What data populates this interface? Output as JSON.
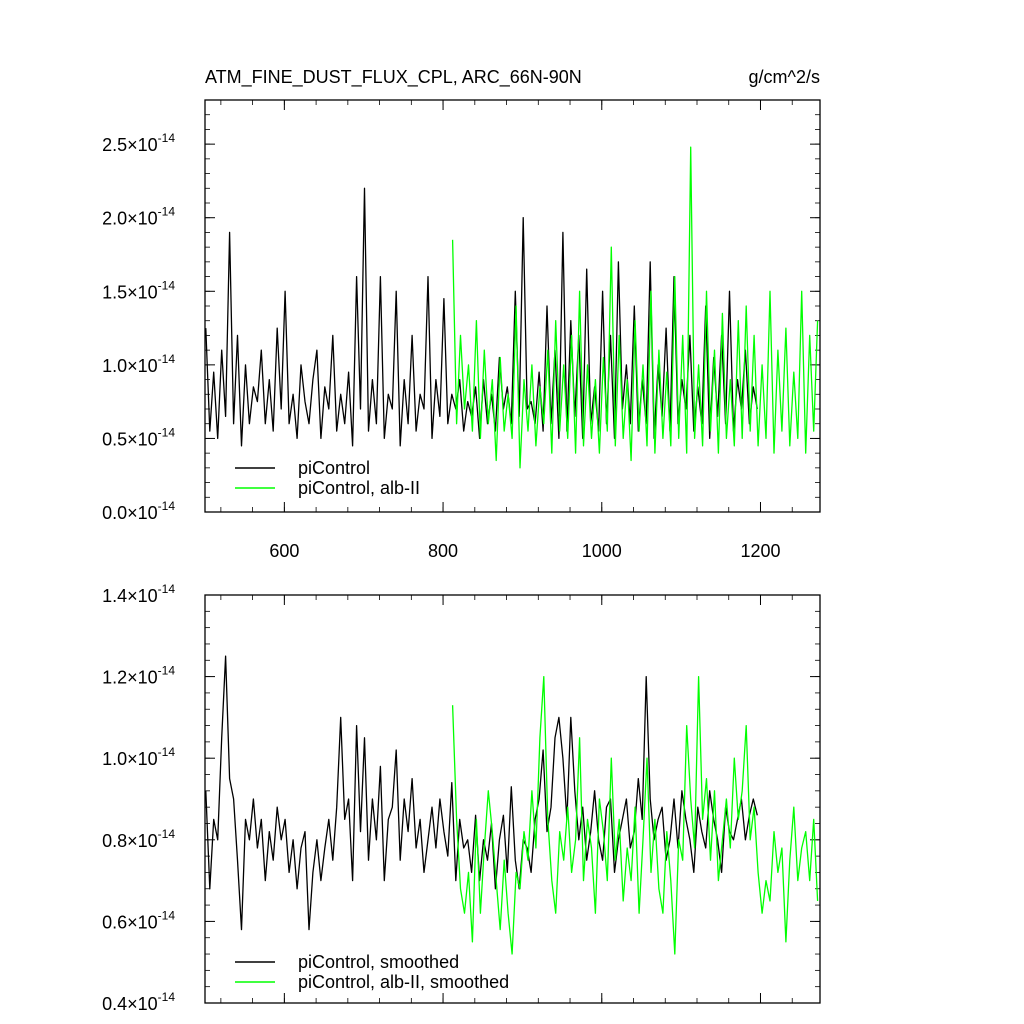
{
  "figure": {
    "title": "ATM_FINE_DUST_FLUX_CPL, ARC_66N-90N",
    "units": "g/cm^2/s"
  },
  "chart_data": [
    {
      "type": "line",
      "title": "ATM_FINE_DUST_FLUX_CPL, ARC_66N-90N",
      "xlim": [
        500,
        1275
      ],
      "ylim": [
        0.0,
        2.8
      ],
      "y_exponent": -14,
      "yticks": [
        0.0,
        0.5,
        1.0,
        1.5,
        2.0,
        2.5
      ],
      "ytick_labels": [
        "0.0",
        "0.5",
        "1.0",
        "1.5",
        "2.0",
        "2.5"
      ],
      "xticks": [
        600,
        800,
        1000,
        1200
      ],
      "xtick_labels": [
        "600",
        "800",
        "1000",
        "1200"
      ],
      "grid": false,
      "legend_position": "bottom-left",
      "series": [
        {
          "name": "piControl",
          "color": "#000000",
          "x": [
            501,
            506,
            511,
            516,
            521,
            526,
            531,
            536,
            541,
            546,
            551,
            556,
            561,
            566,
            571,
            576,
            581,
            586,
            591,
            596,
            601,
            606,
            611,
            616,
            621,
            626,
            631,
            636,
            641,
            646,
            651,
            656,
            661,
            666,
            671,
            676,
            681,
            686,
            691,
            696,
            701,
            706,
            711,
            716,
            721,
            726,
            731,
            736,
            741,
            746,
            751,
            756,
            761,
            766,
            771,
            776,
            781,
            786,
            791,
            796,
            801,
            806,
            811,
            816,
            821,
            826,
            831,
            836,
            841,
            846,
            851,
            856,
            861,
            866,
            871,
            876,
            881,
            886,
            891,
            896,
            901,
            906,
            911,
            916,
            921,
            926,
            931,
            936,
            941,
            946,
            951,
            956,
            961,
            966,
            971,
            976,
            981,
            986,
            991,
            996,
            1001,
            1006,
            1011,
            1016,
            1021,
            1026,
            1031,
            1036,
            1041,
            1046,
            1051,
            1056,
            1061,
            1066,
            1071,
            1076,
            1081,
            1086,
            1091,
            1096,
            1101,
            1106,
            1111,
            1116,
            1121,
            1126,
            1131,
            1136,
            1141,
            1146,
            1151,
            1156,
            1161,
            1166,
            1171,
            1176,
            1181,
            1186,
            1191,
            1196
          ],
          "y": [
            1.25,
            0.55,
            0.95,
            0.5,
            1.1,
            0.65,
            1.9,
            0.6,
            1.2,
            0.45,
            1.0,
            0.6,
            0.85,
            0.75,
            1.1,
            0.6,
            0.9,
            0.55,
            1.25,
            0.7,
            1.5,
            0.6,
            0.8,
            0.5,
            1.0,
            0.75,
            0.6,
            0.9,
            1.1,
            0.5,
            0.85,
            0.7,
            1.2,
            0.55,
            0.8,
            0.6,
            0.95,
            0.45,
            1.6,
            0.7,
            2.2,
            0.55,
            0.9,
            0.6,
            1.6,
            0.5,
            0.8,
            0.7,
            1.5,
            0.45,
            0.9,
            0.6,
            1.2,
            0.55,
            0.8,
            0.7,
            1.6,
            0.5,
            0.9,
            0.65,
            1.45,
            0.6,
            0.8,
            0.7,
            0.9,
            0.55,
            0.75,
            0.65,
            0.85,
            0.5,
            0.9,
            0.6,
            0.8,
            0.55,
            1.05,
            0.7,
            0.85,
            0.6,
            1.5,
            0.65,
            2.0,
            0.7,
            0.75,
            0.6,
            0.95,
            0.55,
            1.4,
            0.6,
            1.1,
            0.5,
            1.9,
            0.55,
            1.3,
            0.65,
            1.2,
            0.5,
            1.65,
            0.6,
            0.85,
            0.55,
            1.5,
            0.6,
            1.2,
            0.5,
            1.7,
            0.7,
            1.0,
            0.6,
            1.4,
            0.55,
            0.9,
            0.6,
            1.7,
            0.5,
            1.0,
            0.65,
            1.25,
            0.55,
            1.6,
            0.6,
            0.9,
            0.7,
            1.2,
            0.55,
            0.85,
            0.6,
            1.4,
            0.5,
            1.05,
            0.65,
            1.2,
            0.6,
            1.5,
            0.55,
            0.9,
            0.7,
            1.1,
            0.6,
            0.85,
            0.7
          ]
        },
        {
          "name": "piControl, alb-II",
          "color": "#00ff00",
          "x": [
            812,
            817,
            822,
            827,
            832,
            837,
            842,
            847,
            852,
            857,
            862,
            867,
            872,
            877,
            882,
            887,
            892,
            897,
            902,
            907,
            912,
            917,
            922,
            927,
            932,
            937,
            942,
            947,
            952,
            957,
            962,
            967,
            972,
            977,
            982,
            987,
            992,
            997,
            1002,
            1007,
            1012,
            1017,
            1022,
            1027,
            1032,
            1037,
            1042,
            1047,
            1052,
            1057,
            1062,
            1067,
            1072,
            1077,
            1082,
            1087,
            1092,
            1097,
            1102,
            1107,
            1112,
            1117,
            1122,
            1127,
            1132,
            1137,
            1142,
            1147,
            1152,
            1157,
            1162,
            1167,
            1172,
            1177,
            1182,
            1187,
            1192,
            1197,
            1202,
            1207,
            1212,
            1217,
            1222,
            1227,
            1232,
            1237,
            1242,
            1247,
            1252,
            1257,
            1262,
            1267,
            1272
          ],
          "y": [
            1.85,
            0.6,
            1.2,
            0.7,
            1.0,
            0.55,
            1.3,
            0.5,
            1.1,
            0.6,
            0.9,
            0.35,
            1.05,
            0.55,
            0.8,
            0.5,
            1.4,
            0.3,
            0.9,
            0.55,
            1.0,
            0.45,
            0.85,
            0.6,
            1.1,
            0.4,
            1.3,
            0.55,
            1.0,
            0.5,
            1.2,
            0.4,
            1.5,
            0.45,
            1.0,
            0.5,
            0.9,
            0.4,
            1.05,
            0.55,
            1.8,
            0.45,
            1.2,
            0.5,
            0.9,
            0.35,
            1.3,
            0.55,
            1.0,
            0.45,
            1.5,
            0.4,
            1.1,
            0.5,
            0.95,
            0.45,
            1.6,
            0.5,
            1.2,
            0.4,
            2.48,
            0.5,
            1.0,
            0.45,
            1.5,
            0.55,
            1.1,
            0.4,
            1.35,
            0.5,
            0.9,
            0.45,
            1.3,
            0.5,
            1.4,
            0.55,
            1.2,
            0.45,
            1.0,
            0.5,
            1.5,
            0.4,
            1.1,
            0.55,
            1.25,
            0.45,
            0.95,
            0.5,
            1.5,
            0.4,
            1.2,
            0.55,
            1.3
          ]
        }
      ]
    },
    {
      "type": "line",
      "xlim": [
        500,
        1275
      ],
      "ylim": [
        0.4,
        1.4
      ],
      "y_exponent": -14,
      "yticks": [
        0.4,
        0.6,
        0.8,
        1.0,
        1.2,
        1.4
      ],
      "ytick_labels": [
        "0.4",
        "0.6",
        "0.8",
        "1.0",
        "1.2",
        "1.4"
      ],
      "xticks": [
        600,
        800,
        1000,
        1200
      ],
      "xtick_labels": [],
      "grid": false,
      "legend_position": "bottom-left",
      "series": [
        {
          "name": "piControl, smoothed",
          "color": "#000000",
          "x": [
            501,
            506,
            511,
            516,
            521,
            526,
            531,
            536,
            541,
            546,
            551,
            556,
            561,
            566,
            571,
            576,
            581,
            586,
            591,
            596,
            601,
            606,
            611,
            616,
            621,
            626,
            631,
            636,
            641,
            646,
            651,
            656,
            661,
            666,
            671,
            676,
            681,
            686,
            691,
            696,
            701,
            706,
            711,
            716,
            721,
            726,
            731,
            736,
            741,
            746,
            751,
            756,
            761,
            766,
            771,
            776,
            781,
            786,
            791,
            796,
            801,
            806,
            811,
            816,
            821,
            826,
            831,
            836,
            841,
            846,
            851,
            856,
            861,
            866,
            871,
            876,
            881,
            886,
            891,
            896,
            901,
            906,
            911,
            916,
            921,
            926,
            931,
            936,
            941,
            946,
            951,
            956,
            961,
            966,
            971,
            976,
            981,
            986,
            991,
            996,
            1001,
            1006,
            1011,
            1016,
            1021,
            1026,
            1031,
            1036,
            1041,
            1046,
            1051,
            1056,
            1061,
            1066,
            1071,
            1076,
            1081,
            1086,
            1091,
            1096,
            1101,
            1106,
            1111,
            1116,
            1121,
            1126,
            1131,
            1136,
            1141,
            1146,
            1151,
            1156,
            1161,
            1166,
            1171,
            1176,
            1181,
            1186,
            1191,
            1196
          ],
          "y": [
            0.92,
            0.68,
            0.85,
            0.8,
            1.05,
            1.25,
            0.95,
            0.9,
            0.75,
            0.58,
            0.85,
            0.8,
            0.9,
            0.78,
            0.85,
            0.7,
            0.82,
            0.75,
            0.88,
            0.8,
            0.85,
            0.72,
            0.8,
            0.68,
            0.78,
            0.82,
            0.58,
            0.72,
            0.8,
            0.7,
            0.78,
            0.85,
            0.75,
            0.88,
            1.1,
            0.85,
            0.9,
            0.7,
            1.08,
            0.82,
            1.05,
            0.75,
            0.9,
            0.8,
            0.98,
            0.7,
            0.85,
            0.88,
            1.02,
            0.75,
            0.9,
            0.82,
            0.95,
            0.78,
            0.85,
            0.72,
            0.8,
            0.88,
            0.78,
            0.9,
            0.82,
            0.76,
            0.94,
            0.7,
            0.85,
            0.78,
            0.8,
            0.72,
            0.86,
            0.7,
            0.8,
            0.75,
            0.84,
            0.68,
            0.8,
            0.86,
            0.72,
            0.93,
            0.75,
            0.68,
            0.8,
            0.78,
            0.72,
            0.85,
            0.9,
            1.02,
            0.82,
            0.88,
            1.05,
            1.1,
            1.0,
            0.85,
            1.1,
            0.92,
            0.8,
            0.88,
            0.75,
            0.82,
            0.92,
            0.8,
            0.75,
            0.88,
            0.9,
            0.72,
            0.8,
            0.85,
            0.9,
            0.78,
            0.82,
            0.95,
            0.85,
            1.2,
            0.9,
            0.8,
            0.85,
            0.88,
            0.75,
            0.8,
            0.9,
            0.78,
            0.92,
            0.85,
            0.8,
            0.72,
            0.88,
            0.82,
            0.78,
            0.92,
            0.85,
            0.8,
            0.72,
            0.88,
            0.82,
            0.8,
            0.85,
            0.9,
            0.8,
            0.86,
            0.9,
            0.86
          ]
        },
        {
          "name": "piControl, alb-II, smoothed",
          "color": "#00ff00",
          "x": [
            812,
            817,
            822,
            827,
            832,
            837,
            842,
            847,
            852,
            857,
            862,
            867,
            872,
            877,
            882,
            887,
            892,
            897,
            902,
            907,
            912,
            917,
            922,
            927,
            932,
            937,
            942,
            947,
            952,
            957,
            962,
            967,
            972,
            977,
            982,
            987,
            992,
            997,
            1002,
            1007,
            1012,
            1017,
            1022,
            1027,
            1032,
            1037,
            1042,
            1047,
            1052,
            1057,
            1062,
            1067,
            1072,
            1077,
            1082,
            1087,
            1092,
            1097,
            1102,
            1107,
            1112,
            1117,
            1122,
            1127,
            1132,
            1137,
            1142,
            1147,
            1152,
            1157,
            1162,
            1167,
            1172,
            1177,
            1182,
            1187,
            1192,
            1197,
            1202,
            1207,
            1212,
            1217,
            1222,
            1227,
            1232,
            1237,
            1242,
            1247,
            1252,
            1257,
            1262,
            1267,
            1272
          ],
          "y": [
            1.13,
            0.85,
            0.68,
            0.62,
            0.72,
            0.55,
            0.85,
            0.62,
            0.78,
            0.92,
            0.82,
            0.7,
            0.58,
            0.75,
            0.62,
            0.52,
            0.72,
            0.68,
            0.82,
            0.75,
            0.92,
            0.78,
            1.05,
            1.2,
            0.85,
            0.7,
            0.62,
            0.82,
            0.75,
            0.88,
            0.72,
            0.8,
            1.05,
            0.7,
            0.85,
            0.78,
            0.62,
            0.9,
            0.82,
            0.7,
            1.0,
            0.75,
            0.85,
            0.65,
            0.78,
            0.7,
            0.88,
            0.62,
            0.8,
            1.0,
            0.72,
            0.85,
            0.68,
            0.62,
            0.82,
            0.7,
            0.52,
            0.8,
            0.75,
            1.08,
            0.9,
            0.78,
            1.2,
            0.85,
            0.95,
            0.75,
            0.92,
            0.7,
            0.8,
            0.9,
            0.78,
            1.0,
            0.85,
            0.92,
            1.08,
            0.8,
            0.88,
            0.72,
            0.62,
            0.7,
            0.65,
            0.82,
            0.72,
            0.78,
            0.55,
            0.75,
            0.88,
            0.7,
            0.78,
            0.82,
            0.7,
            0.85,
            0.65
          ]
        }
      ]
    }
  ]
}
